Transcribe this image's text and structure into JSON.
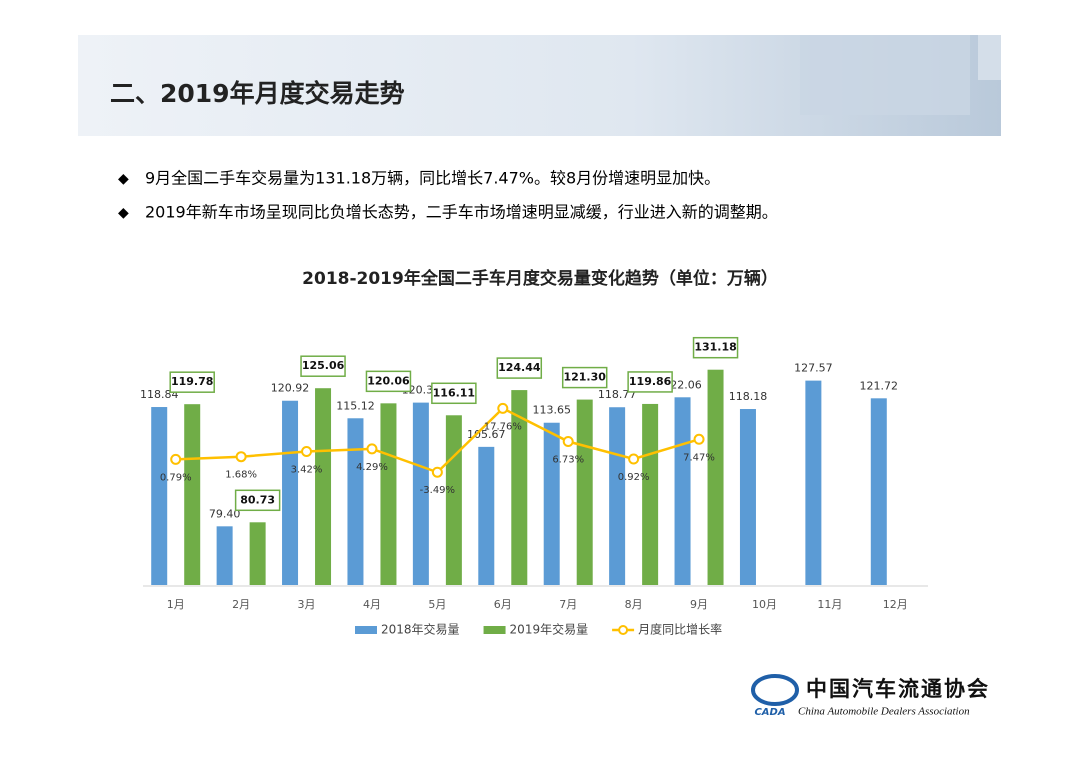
{
  "header": {
    "title": "二、2019年月度交易走势"
  },
  "bullets": [
    "9月全国二手车交易量为131.18万辆，同比增长7.47%。较8月份增速明显加快。",
    "2019年新车市场呈现同比负增长态势，二手车市场增速明显减缓，行业进入新的调整期。"
  ],
  "chart_data": {
    "type": "bar-line",
    "title": "2018-2019年全国二手车月度交易量变化趋势（单位：万辆）",
    "categories": [
      "1月",
      "2月",
      "3月",
      "4月",
      "5月",
      "6月",
      "7月",
      "8月",
      "9月",
      "10月",
      "11月",
      "12月"
    ],
    "ylim": [
      60,
      141
    ],
    "y2lim": [
      -41,
      40.5
    ],
    "legend": "bottom",
    "series": [
      {
        "name": "2018年交易量",
        "type": "bar",
        "color": "#5b9bd5",
        "values": [
          118.84,
          79.4,
          120.92,
          115.12,
          120.3,
          105.67,
          113.65,
          118.77,
          122.06,
          118.18,
          127.57,
          121.72
        ],
        "value_labels": [
          "118.84",
          "79.40",
          "120.92",
          "115.12",
          "120.30",
          "105.67",
          "113.65",
          "118.77",
          "122.06",
          "118.18",
          "127.57",
          "121.72"
        ]
      },
      {
        "name": "2019年交易量",
        "type": "bar",
        "color": "#70ad47",
        "values": [
          119.78,
          80.73,
          125.06,
          120.06,
          116.11,
          124.44,
          121.3,
          119.86,
          131.18,
          null,
          null,
          null
        ],
        "value_labels": [
          "119.78",
          "80.73",
          "125.06",
          "120.06",
          "116.11",
          "124.44",
          "121.30",
          "119.86",
          "131.18",
          null,
          null,
          null
        ]
      },
      {
        "name": "月度同比增长率",
        "type": "line",
        "axis": "y2",
        "color": "#ffc000",
        "values": [
          0.79,
          1.68,
          3.42,
          4.29,
          -3.49,
          17.76,
          6.73,
          0.92,
          7.47,
          null,
          null,
          null
        ],
        "value_labels": [
          "0.79%",
          "1.68%",
          "3.42%",
          "4.29%",
          "-3.49%",
          "17.76%",
          "6.73%",
          "0.92%",
          "7.47%",
          null,
          null,
          null
        ]
      }
    ]
  },
  "logo": {
    "name": "中国汽车流通协会",
    "english": "China Automobile Dealers Association",
    "abbr": "CADA"
  }
}
